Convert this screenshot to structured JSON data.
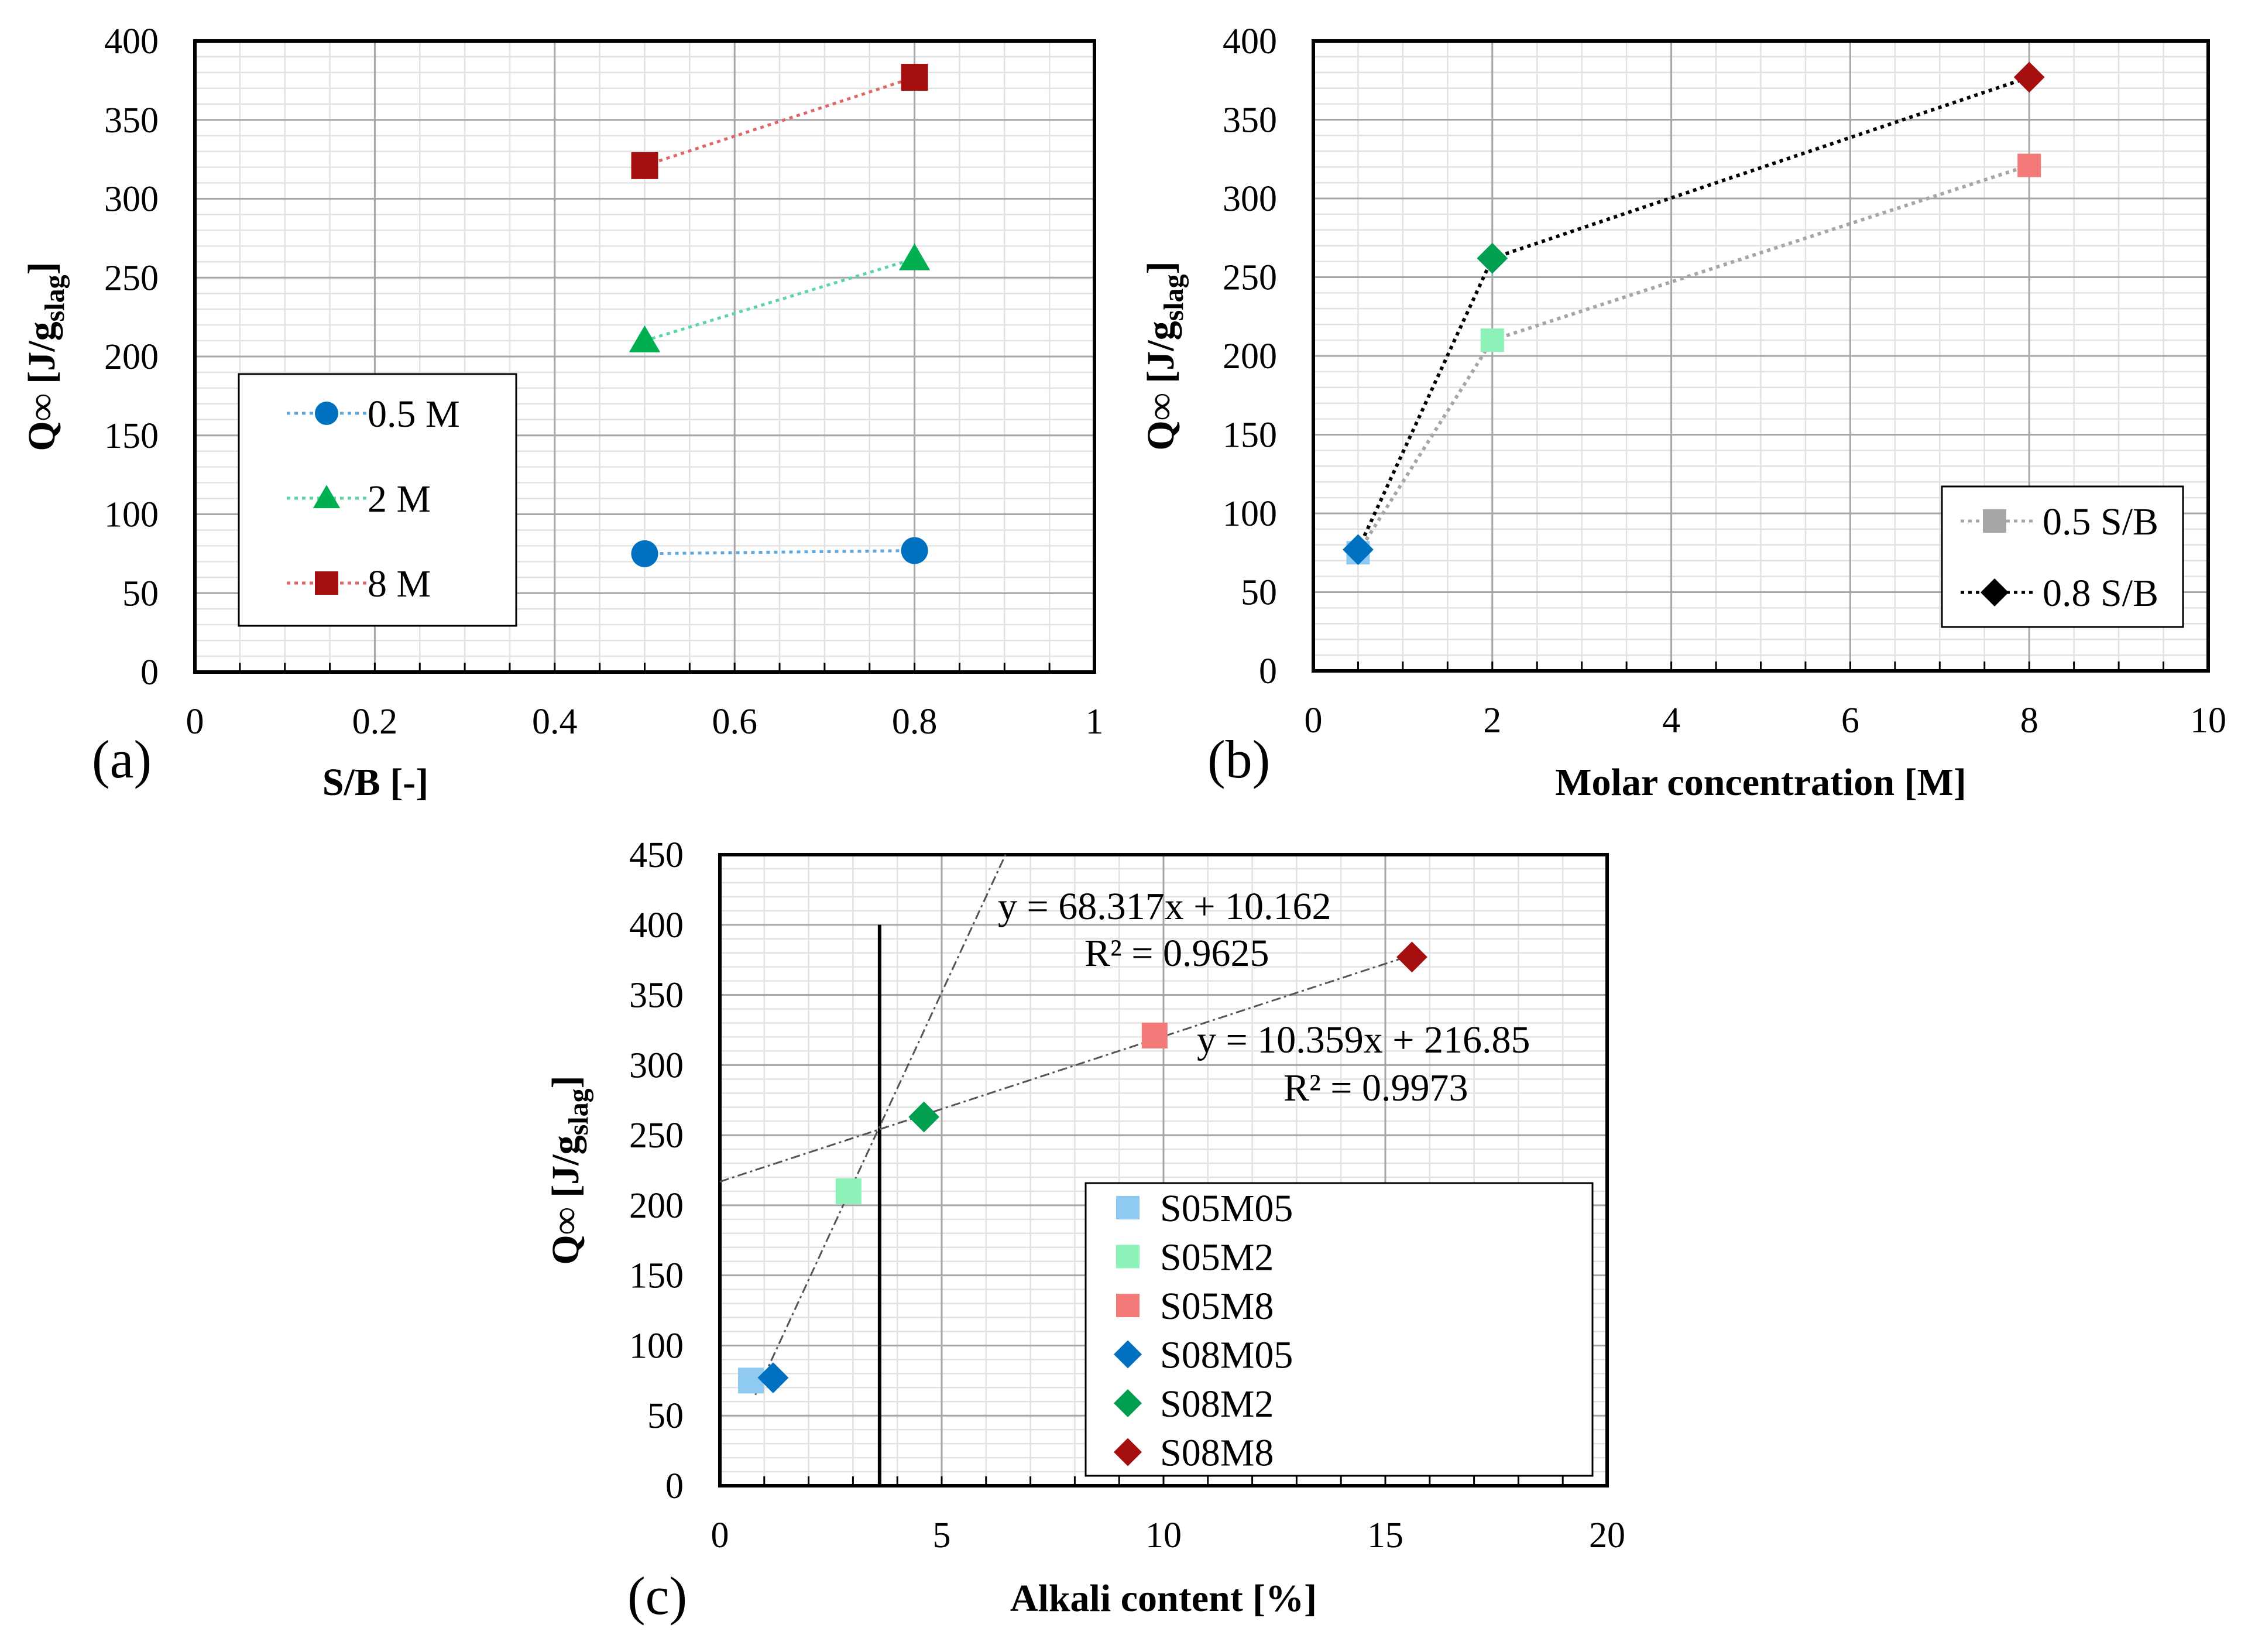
{
  "chart_data": [
    {
      "type": "scatter",
      "panel_label": "(a)",
      "xlabel": "S/B [-]",
      "ylabel": {
        "base": "Q∞ [J/g",
        "sub": "slag",
        "close": "]"
      },
      "xlim": [
        0,
        1
      ],
      "ylim": [
        0,
        400
      ],
      "x_major_step": 0.2,
      "x_minor_step": 0.05,
      "y_major_step": 50,
      "y_minor_step": 10,
      "xticks": [
        "0",
        "0.2",
        "0.4",
        "0.6",
        "0.8",
        "1"
      ],
      "yticks": [
        "0",
        "50",
        "100",
        "150",
        "200",
        "250",
        "300",
        "350",
        "400"
      ],
      "grid": true,
      "legend_position": "middle-left",
      "series": [
        {
          "name": "0.5 M",
          "marker": "circle",
          "color": "#0070c0",
          "line_color": "#5fa8e0",
          "x": [
            0.5,
            0.8
          ],
          "y": [
            75,
            77
          ]
        },
        {
          "name": "2 M",
          "marker": "triangle",
          "color": "#00b050",
          "line_color": "#5cd6a0",
          "x": [
            0.5,
            0.8
          ],
          "y": [
            210,
            262
          ]
        },
        {
          "name": "8 M",
          "marker": "square",
          "color": "#a50f0f",
          "line_color": "#e06666",
          "x": [
            0.5,
            0.8
          ],
          "y": [
            321,
            377
          ]
        }
      ]
    },
    {
      "type": "scatter",
      "panel_label": "(b)",
      "xlabel": "Molar concentration [M]",
      "ylabel": {
        "base": "Q∞ [J/g",
        "sub": "slag",
        "close": "]"
      },
      "xlim": [
        0,
        10
      ],
      "ylim": [
        0,
        400
      ],
      "x_major_step": 2,
      "x_minor_step": 0.5,
      "y_major_step": 50,
      "y_minor_step": 10,
      "xticks": [
        "0",
        "2",
        "4",
        "6",
        "8",
        "10"
      ],
      "yticks": [
        "0",
        "50",
        "100",
        "150",
        "200",
        "250",
        "300",
        "350",
        "400"
      ],
      "grid": true,
      "legend_position": "bottom-right",
      "series": [
        {
          "name": "0.5 S/B",
          "legend_marker": "square",
          "legend_color": "#a6a6a6",
          "line_color": "#a6a6a6",
          "x": [
            0.5,
            2,
            8
          ],
          "y": [
            75,
            210,
            321
          ],
          "markers": [
            "square",
            "square",
            "square"
          ],
          "colors": [
            "#8fcaf2",
            "#8cf2b8",
            "#f47a7a"
          ]
        },
        {
          "name": "0.8 S/B",
          "legend_marker": "diamond",
          "legend_color": "#000000",
          "line_color": "#000000",
          "x": [
            0.5,
            2,
            8
          ],
          "y": [
            77,
            262,
            377
          ],
          "markers": [
            "diamond",
            "diamond",
            "diamond"
          ],
          "colors": [
            "#0070c0",
            "#00a050",
            "#a50f0f"
          ]
        }
      ]
    },
    {
      "type": "scatter",
      "panel_label": "(c)",
      "xlabel": "Alkali content [%]",
      "ylabel": {
        "base": "Q∞ [J/g",
        "sub": "slag",
        "close": "]"
      },
      "xlim": [
        0,
        20
      ],
      "ylim": [
        0,
        450
      ],
      "x_major_step": 5,
      "x_minor_step": 1,
      "y_major_step": 50,
      "y_minor_step": 10,
      "xticks": [
        "0",
        "5",
        "10",
        "15",
        "20"
      ],
      "yticks": [
        "0",
        "50",
        "100",
        "150",
        "200",
        "250",
        "300",
        "350",
        "400",
        "450"
      ],
      "grid": true,
      "legend_position": "bottom-right",
      "vertical_line": {
        "x": 3.6,
        "y_from": 0,
        "y_to": 400
      },
      "series": [
        {
          "name": "S05M05",
          "marker": "square",
          "color": "#8fcaf2",
          "x": [
            0.7
          ],
          "y": [
            75
          ]
        },
        {
          "name": "S05M2",
          "marker": "square",
          "color": "#8cf2b8",
          "x": [
            2.9
          ],
          "y": [
            210
          ]
        },
        {
          "name": "S05M8",
          "marker": "square",
          "color": "#f47a7a",
          "x": [
            9.8
          ],
          "y": [
            321
          ]
        },
        {
          "name": "S08M05",
          "marker": "diamond",
          "color": "#0070c0",
          "x": [
            1.2
          ],
          "y": [
            77
          ]
        },
        {
          "name": "S08M2",
          "marker": "diamond",
          "color": "#00a050",
          "x": [
            4.6
          ],
          "y": [
            263
          ]
        },
        {
          "name": "S08M8",
          "marker": "diamond",
          "color": "#a50f0f",
          "x": [
            15.6
          ],
          "y": [
            377
          ]
        }
      ],
      "trendlines": [
        {
          "slope": 68.317,
          "intercept": 10.162,
          "x_range": [
            0.8,
            6.44
          ],
          "equation": "y = 68.317x + 10.162",
          "r2": "R² = 0.9625"
        },
        {
          "slope": 10.359,
          "intercept": 216.85,
          "x_range": [
            0,
            15.6
          ],
          "equation": "y = 10.359x + 216.85",
          "r2": "R² = 0.9973"
        }
      ]
    }
  ]
}
